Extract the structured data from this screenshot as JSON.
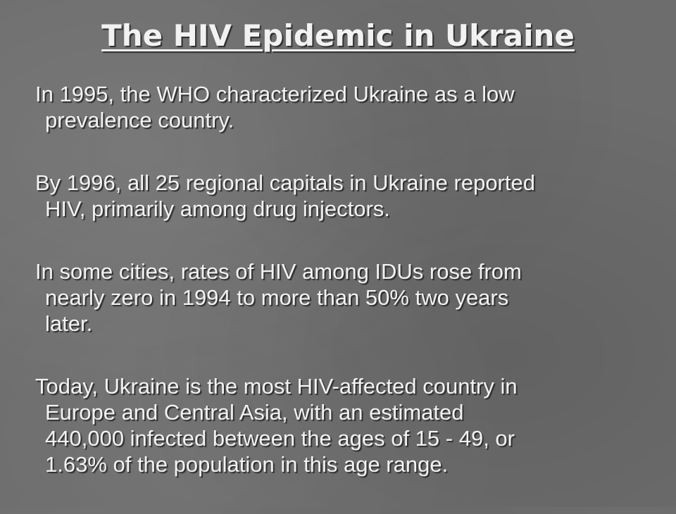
{
  "title": "The HIV Epidemic in Ukraine",
  "paragraphs": [
    {
      "lines": [
        "In 1995, the WHO characterized Ukraine as a low",
        "prevalence country."
      ]
    },
    {
      "lines": [
        "By 1996, all 25 regional capitals in Ukraine reported",
        "HIV, primarily among drug injectors."
      ]
    },
    {
      "lines": [
        "In some cities, rates of HIV among IDUs rose from",
        "nearly zero in 1994 to more than 50% two years",
        "later."
      ]
    },
    {
      "lines": [
        "Today, Ukraine is the most HIV-affected country in",
        "Europe and Central Asia, with an estimated",
        "440,000 infected between the ages of 15 - 49, or",
        "1.63% of the population in this age range."
      ]
    }
  ]
}
